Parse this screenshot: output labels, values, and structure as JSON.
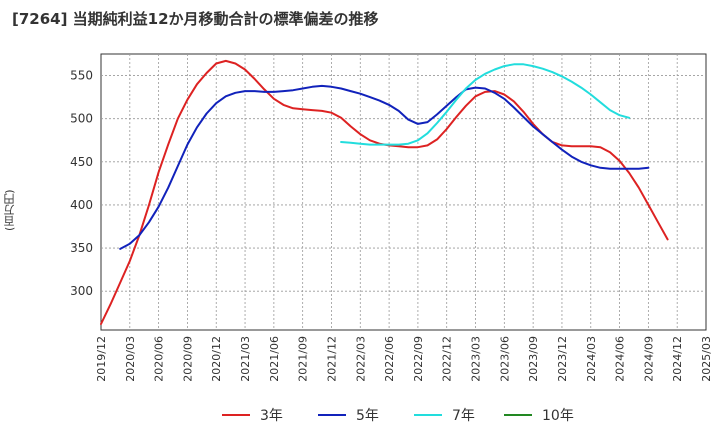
{
  "title": "[7264]  当期純利益12か月移動合計の標準偏差の推移",
  "chart_data": {
    "type": "line",
    "ylabel": "(百万円)",
    "ylim": [
      255,
      575
    ],
    "yticks": [
      300,
      350,
      400,
      450,
      500,
      550
    ],
    "x_range": [
      "2019-12",
      "2025-03"
    ],
    "x_ticks": [
      "2019/12",
      "2020/03",
      "2020/06",
      "2020/09",
      "2020/12",
      "2021/03",
      "2021/06",
      "2021/09",
      "2021/12",
      "2022/03",
      "2022/06",
      "2022/09",
      "2022/12",
      "2023/03",
      "2023/06",
      "2023/09",
      "2023/12",
      "2024/03",
      "2024/06",
      "2024/09",
      "2024/12",
      "2025/03"
    ],
    "grid": true,
    "legend_position": "bottom",
    "series": [
      {
        "name": "3年",
        "color": "#dd2222",
        "points": [
          [
            "2019-12",
            262
          ],
          [
            "2020-01",
            285
          ],
          [
            "2020-02",
            310
          ],
          [
            "2020-03",
            335
          ],
          [
            "2020-04",
            365
          ],
          [
            "2020-05",
            400
          ],
          [
            "2020-06",
            438
          ],
          [
            "2020-07",
            470
          ],
          [
            "2020-08",
            500
          ],
          [
            "2020-09",
            522
          ],
          [
            "2020-10",
            540
          ],
          [
            "2020-11",
            553
          ],
          [
            "2020-12",
            564
          ],
          [
            "2021-01",
            567
          ],
          [
            "2021-02",
            564
          ],
          [
            "2021-03",
            557
          ],
          [
            "2021-04",
            546
          ],
          [
            "2021-05",
            534
          ],
          [
            "2021-06",
            523
          ],
          [
            "2021-07",
            516
          ],
          [
            "2021-08",
            512
          ],
          [
            "2021-09",
            511
          ],
          [
            "2021-10",
            510
          ],
          [
            "2021-11",
            509
          ],
          [
            "2021-12",
            507
          ],
          [
            "2022-01",
            501
          ],
          [
            "2022-02",
            491
          ],
          [
            "2022-03",
            482
          ],
          [
            "2022-04",
            475
          ],
          [
            "2022-05",
            471
          ],
          [
            "2022-06",
            469
          ],
          [
            "2022-07",
            468
          ],
          [
            "2022-08",
            467
          ],
          [
            "2022-09",
            467
          ],
          [
            "2022-10",
            469
          ],
          [
            "2022-11",
            476
          ],
          [
            "2022-12",
            488
          ],
          [
            "2023-01",
            502
          ],
          [
            "2023-02",
            515
          ],
          [
            "2023-03",
            526
          ],
          [
            "2023-04",
            531
          ],
          [
            "2023-05",
            532
          ],
          [
            "2023-06",
            528
          ],
          [
            "2023-07",
            520
          ],
          [
            "2023-08",
            508
          ],
          [
            "2023-09",
            494
          ],
          [
            "2023-10",
            482
          ],
          [
            "2023-11",
            473
          ],
          [
            "2023-12",
            469
          ],
          [
            "2024-01",
            468
          ],
          [
            "2024-02",
            468
          ],
          [
            "2024-03",
            468
          ],
          [
            "2024-04",
            467
          ],
          [
            "2024-05",
            461
          ],
          [
            "2024-06",
            451
          ],
          [
            "2024-07",
            437
          ],
          [
            "2024-08",
            420
          ],
          [
            "2024-09",
            400
          ],
          [
            "2024-10",
            380
          ],
          [
            "2024-11",
            360
          ]
        ]
      },
      {
        "name": "5年",
        "color": "#1122bb",
        "points": [
          [
            "2020-02",
            349
          ],
          [
            "2020-03",
            355
          ],
          [
            "2020-04",
            365
          ],
          [
            "2020-05",
            380
          ],
          [
            "2020-06",
            398
          ],
          [
            "2020-07",
            420
          ],
          [
            "2020-08",
            445
          ],
          [
            "2020-09",
            470
          ],
          [
            "2020-10",
            490
          ],
          [
            "2020-11",
            506
          ],
          [
            "2020-12",
            518
          ],
          [
            "2021-01",
            526
          ],
          [
            "2021-02",
            530
          ],
          [
            "2021-03",
            532
          ],
          [
            "2021-04",
            532
          ],
          [
            "2021-05",
            531
          ],
          [
            "2021-06",
            531
          ],
          [
            "2021-07",
            532
          ],
          [
            "2021-08",
            533
          ],
          [
            "2021-09",
            535
          ],
          [
            "2021-10",
            537
          ],
          [
            "2021-11",
            538
          ],
          [
            "2021-12",
            537
          ],
          [
            "2022-01",
            535
          ],
          [
            "2022-02",
            532
          ],
          [
            "2022-03",
            529
          ],
          [
            "2022-04",
            525
          ],
          [
            "2022-05",
            521
          ],
          [
            "2022-06",
            516
          ],
          [
            "2022-07",
            509
          ],
          [
            "2022-08",
            499
          ],
          [
            "2022-09",
            494
          ],
          [
            "2022-10",
            496
          ],
          [
            "2022-11",
            505
          ],
          [
            "2022-12",
            515
          ],
          [
            "2023-01",
            525
          ],
          [
            "2023-02",
            534
          ],
          [
            "2023-03",
            536
          ],
          [
            "2023-04",
            535
          ],
          [
            "2023-05",
            530
          ],
          [
            "2023-06",
            523
          ],
          [
            "2023-07",
            513
          ],
          [
            "2023-08",
            502
          ],
          [
            "2023-09",
            491
          ],
          [
            "2023-10",
            482
          ],
          [
            "2023-11",
            473
          ],
          [
            "2023-12",
            464
          ],
          [
            "2024-01",
            456
          ],
          [
            "2024-02",
            450
          ],
          [
            "2024-03",
            446
          ],
          [
            "2024-04",
            443
          ],
          [
            "2024-05",
            442
          ],
          [
            "2024-06",
            442
          ],
          [
            "2024-07",
            442
          ],
          [
            "2024-08",
            442
          ],
          [
            "2024-09",
            443
          ]
        ]
      },
      {
        "name": "7年",
        "color": "#22dddd",
        "points": [
          [
            "2022-01",
            473
          ],
          [
            "2022-02",
            472
          ],
          [
            "2022-03",
            471
          ],
          [
            "2022-04",
            470
          ],
          [
            "2022-05",
            470
          ],
          [
            "2022-06",
            470
          ],
          [
            "2022-07",
            470
          ],
          [
            "2022-08",
            471
          ],
          [
            "2022-09",
            475
          ],
          [
            "2022-10",
            483
          ],
          [
            "2022-11",
            495
          ],
          [
            "2022-12",
            508
          ],
          [
            "2023-01",
            522
          ],
          [
            "2023-02",
            535
          ],
          [
            "2023-03",
            545
          ],
          [
            "2023-04",
            552
          ],
          [
            "2023-05",
            557
          ],
          [
            "2023-06",
            561
          ],
          [
            "2023-07",
            563
          ],
          [
            "2023-08",
            563
          ],
          [
            "2023-09",
            561
          ],
          [
            "2023-10",
            558
          ],
          [
            "2023-11",
            554
          ],
          [
            "2023-12",
            549
          ],
          [
            "2024-01",
            543
          ],
          [
            "2024-02",
            536
          ],
          [
            "2024-03",
            528
          ],
          [
            "2024-04",
            519
          ],
          [
            "2024-05",
            510
          ],
          [
            "2024-06",
            504
          ],
          [
            "2024-07",
            501
          ]
        ]
      },
      {
        "name": "10年",
        "color": "#228822",
        "points": []
      }
    ]
  }
}
